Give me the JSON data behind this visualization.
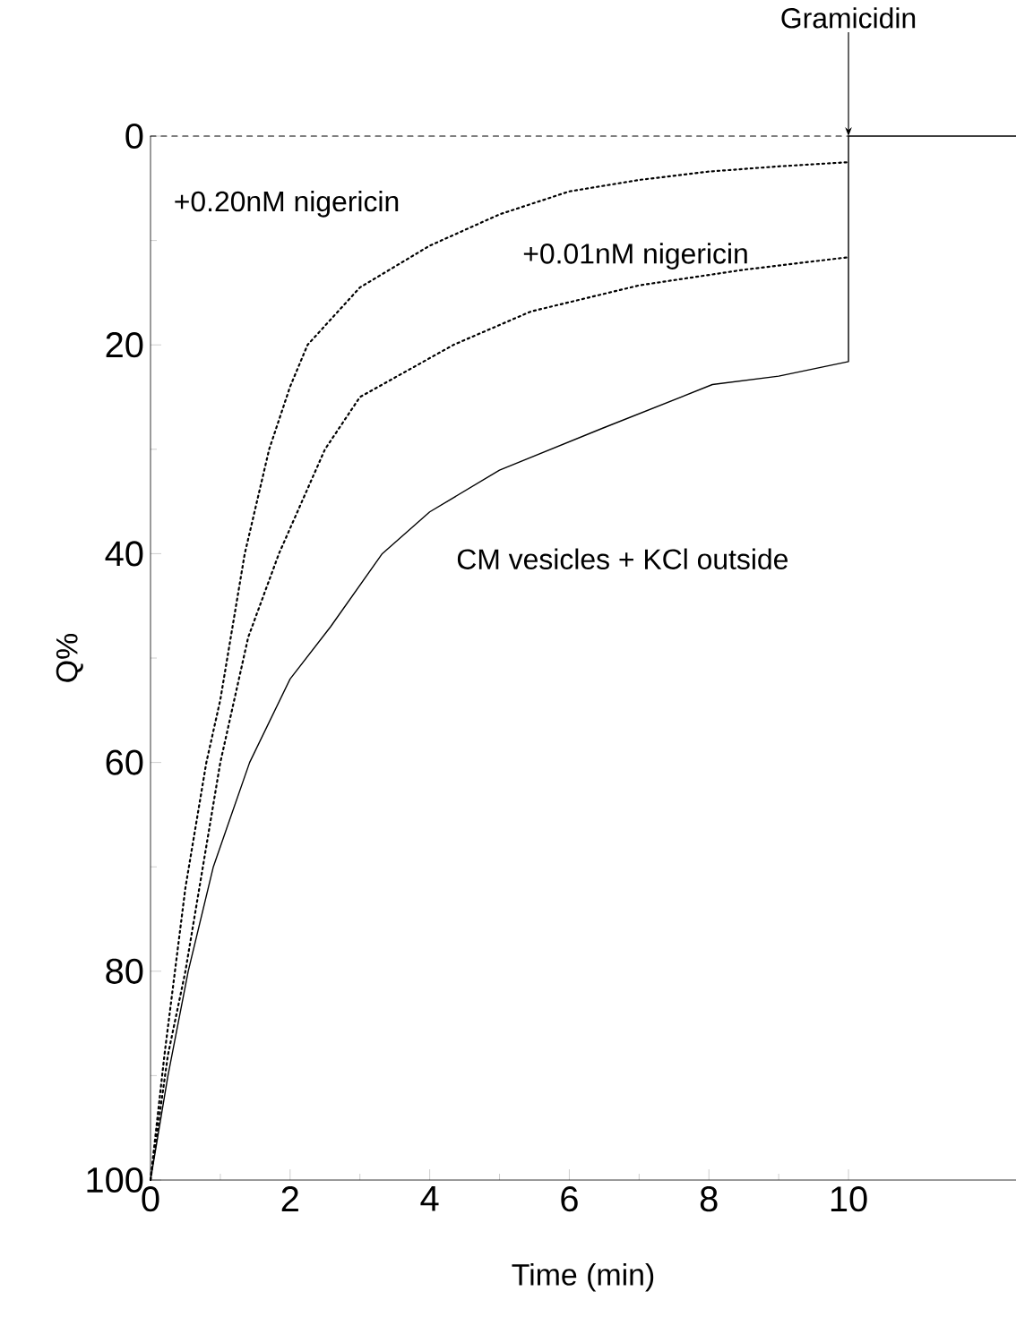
{
  "chart_data": {
    "type": "line",
    "xlabel": "Time (min)",
    "ylabel": "Q%",
    "xlim": [
      0,
      12.4
    ],
    "ylim": [
      100,
      0
    ],
    "xticks": [
      0,
      2,
      4,
      6,
      8,
      10
    ],
    "yticks": [
      0,
      20,
      40,
      60,
      80,
      100
    ],
    "grid": false,
    "legend": false,
    "series": [
      {
        "color": "#000000",
        "line_style": "dashed",
        "x": [
          0,
          10
        ],
        "values": [
          0,
          0
        ]
      },
      {
        "name": "+0.20nM nigericin",
        "color": "#000000",
        "line_style": "dotted",
        "x": [
          0,
          0.2,
          0.35,
          0.5,
          0.8,
          1,
          1.35,
          1.7,
          2,
          2.25,
          3,
          4,
          5,
          6,
          7,
          8,
          9,
          10
        ],
        "values": [
          100,
          88,
          80,
          72,
          60,
          54,
          40,
          30,
          24,
          20,
          14.5,
          10.5,
          7.5,
          5.3,
          4.2,
          3.4,
          2.9,
          2.5
        ]
      },
      {
        "name": "+0.01nM nigericin",
        "color": "#000000",
        "line_style": "dotted",
        "x": [
          0,
          0.25,
          0.5,
          1,
          1.4,
          1.84,
          2.5,
          3,
          4.34,
          5.45,
          7,
          8.5,
          10
        ],
        "values": [
          100,
          88,
          80,
          60,
          48,
          40,
          30,
          25,
          20,
          16.8,
          14.3,
          12.8,
          11.6
        ]
      },
      {
        "name": "CM vesicles + KCl outside",
        "color": "#000000",
        "line_style": "solid",
        "x": [
          0,
          0.25,
          0.54,
          0.9,
          1.42,
          2,
          2.58,
          3.32,
          4,
          5,
          6.47,
          8.05,
          9,
          10,
          10,
          12.4
        ],
        "values": [
          100,
          90,
          80,
          70,
          60,
          52,
          47,
          40,
          36,
          32,
          28,
          23.8,
          23,
          21.6,
          0,
          0
        ]
      }
    ],
    "annotations": [
      {
        "text": "Gramicidin",
        "x": 10,
        "y": 0
      }
    ]
  }
}
